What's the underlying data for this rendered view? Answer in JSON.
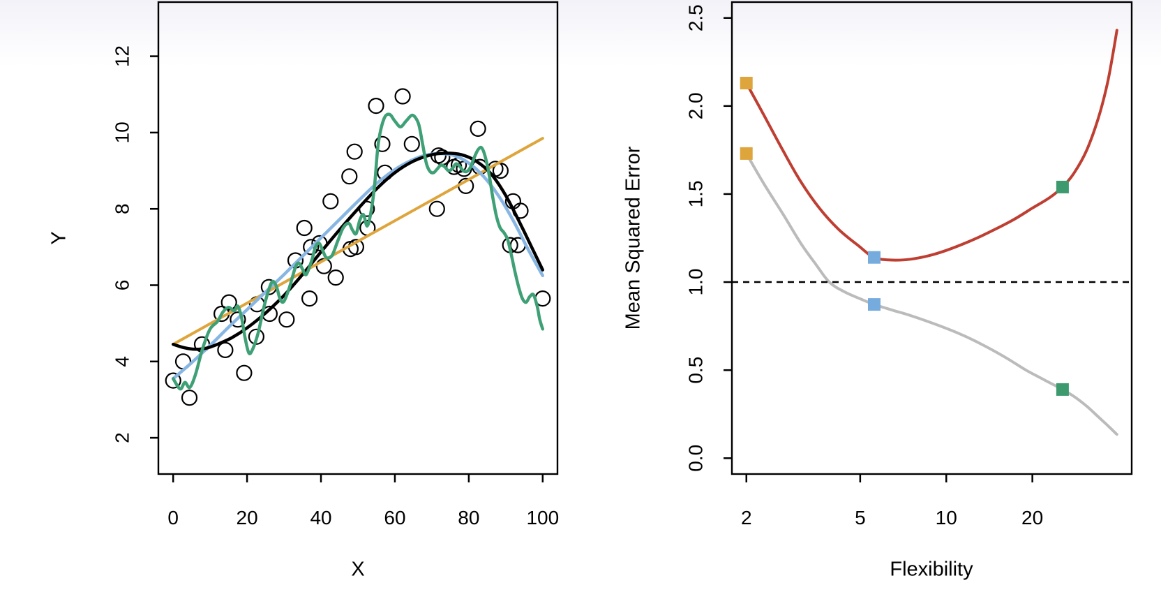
{
  "figure": {
    "background": "#ffffff",
    "top_gradient_color": "#f2f2f8",
    "axis_color": "#000000"
  },
  "chart_data": [
    {
      "id": "left-panel",
      "type": "scatter",
      "xlabel": "X",
      "ylabel": "Y",
      "x_ticks": [
        0,
        20,
        40,
        60,
        80,
        100
      ],
      "x_tick_labels": [
        "0",
        "20",
        "40",
        "60",
        "80",
        "100"
      ],
      "y_ticks": [
        2,
        4,
        6,
        8,
        10,
        12
      ],
      "y_tick_labels": [
        "2",
        "4",
        "6",
        "8",
        "10",
        "12"
      ],
      "xlim": [
        -4,
        104
      ],
      "ylim": [
        1.05,
        13.42
      ],
      "x_scale": "linear",
      "grid": false,
      "point_style": {
        "shape": "open-circle",
        "radius": 10.5,
        "stroke": "#000000",
        "stroke_width": 2.2
      },
      "points": [
        [
          0,
          3.5
        ],
        [
          2.7,
          4.0
        ],
        [
          4.4,
          3.05
        ],
        [
          7.8,
          4.45
        ],
        [
          13.1,
          5.25
        ],
        [
          14.1,
          4.3
        ],
        [
          15.1,
          5.55
        ],
        [
          17.5,
          5.1
        ],
        [
          19.2,
          3.7
        ],
        [
          22.5,
          4.65
        ],
        [
          22.7,
          5.5
        ],
        [
          25.9,
          5.95
        ],
        [
          26.1,
          5.25
        ],
        [
          30.7,
          5.1
        ],
        [
          33.1,
          6.65
        ],
        [
          35.5,
          7.5
        ],
        [
          36.9,
          5.65
        ],
        [
          37.3,
          7.0
        ],
        [
          39.6,
          7.1
        ],
        [
          40.8,
          6.5
        ],
        [
          42.6,
          8.2
        ],
        [
          44,
          6.2
        ],
        [
          47.7,
          8.85
        ],
        [
          48,
          6.95
        ],
        [
          49.1,
          9.5
        ],
        [
          49.5,
          7.0
        ],
        [
          52.4,
          8.0
        ],
        [
          52.6,
          7.5
        ],
        [
          54.9,
          10.7
        ],
        [
          56.6,
          9.7
        ],
        [
          57.3,
          8.95
        ],
        [
          62.1,
          10.95
        ],
        [
          64.6,
          9.7
        ],
        [
          71.4,
          8.0
        ],
        [
          71.8,
          9.4
        ],
        [
          72.8,
          9.35
        ],
        [
          76,
          9.1
        ],
        [
          77.3,
          9.15
        ],
        [
          78.7,
          9.05
        ],
        [
          79.2,
          8.6
        ],
        [
          82.5,
          10.1
        ],
        [
          83,
          9.1
        ],
        [
          87.2,
          9.05
        ],
        [
          88.6,
          9.0
        ],
        [
          91.2,
          7.05
        ],
        [
          92,
          8.2
        ],
        [
          93.3,
          7.05
        ],
        [
          94,
          7.95
        ],
        [
          100,
          5.65
        ]
      ],
      "series": [
        {
          "name": "linear-regression-fit",
          "color": "#DEA53C",
          "width": 4,
          "smooth": false,
          "points": [
            [
              0,
              4.45
            ],
            [
              100,
              9.85
            ]
          ]
        },
        {
          "name": "smoothing-spline-fit",
          "color": "#88B6E3",
          "width": 4.5,
          "smooth": true,
          "points": [
            [
              0,
              3.55
            ],
            [
              5,
              3.97
            ],
            [
              10,
              4.42
            ],
            [
              15,
              4.9
            ],
            [
              20,
              5.36
            ],
            [
              25,
              5.82
            ],
            [
              30,
              6.28
            ],
            [
              35,
              6.76
            ],
            [
              40,
              7.24
            ],
            [
              45,
              7.72
            ],
            [
              50,
              8.2
            ],
            [
              55,
              8.66
            ],
            [
              60,
              9.03
            ],
            [
              64,
              9.25
            ],
            [
              68,
              9.4
            ],
            [
              72,
              9.45
            ],
            [
              76,
              9.4
            ],
            [
              80,
              9.2
            ],
            [
              84,
              8.85
            ],
            [
              88,
              8.35
            ],
            [
              92,
              7.7
            ],
            [
              96,
              6.95
            ],
            [
              100,
              6.25
            ]
          ]
        },
        {
          "name": "true-function",
          "color": "#000000",
          "width": 4.5,
          "smooth": true,
          "points": [
            [
              0,
              4.45
            ],
            [
              3,
              4.36
            ],
            [
              6,
              4.32
            ],
            [
              9,
              4.35
            ],
            [
              12,
              4.45
            ],
            [
              16,
              4.63
            ],
            [
              20,
              4.88
            ],
            [
              25,
              5.27
            ],
            [
              30,
              5.73
            ],
            [
              35,
              6.28
            ],
            [
              40,
              6.87
            ],
            [
              45,
              7.45
            ],
            [
              50,
              8.0
            ],
            [
              55,
              8.52
            ],
            [
              60,
              8.95
            ],
            [
              65,
              9.25
            ],
            [
              70,
              9.42
            ],
            [
              74,
              9.46
            ],
            [
              78,
              9.42
            ],
            [
              82,
              9.25
            ],
            [
              86,
              8.92
            ],
            [
              90,
              8.35
            ],
            [
              94,
              7.6
            ],
            [
              97,
              7.0
            ],
            [
              100,
              6.4
            ]
          ]
        },
        {
          "name": "rough-spline-fit",
          "color": "#3FA076",
          "width": 4.5,
          "smooth": true,
          "points": [
            [
              0,
              3.55
            ],
            [
              1.9,
              3.28
            ],
            [
              3.2,
              3.45
            ],
            [
              4.5,
              3.32
            ],
            [
              6,
              3.65
            ],
            [
              8,
              4.35
            ],
            [
              10,
              4.85
            ],
            [
              12,
              5.05
            ],
            [
              13.5,
              5.3
            ],
            [
              15,
              5.42
            ],
            [
              16.5,
              5.33
            ],
            [
              17.5,
              5.45
            ],
            [
              18.5,
              5.15
            ],
            [
              19.5,
              4.6
            ],
            [
              20.5,
              4.22
            ],
            [
              21.5,
              4.32
            ],
            [
              23,
              4.75
            ],
            [
              24.5,
              5.4
            ],
            [
              26,
              5.92
            ],
            [
              27,
              6.1
            ],
            [
              28,
              5.95
            ],
            [
              29,
              5.62
            ],
            [
              30,
              5.58
            ],
            [
              31.5,
              5.95
            ],
            [
              33,
              6.45
            ],
            [
              34,
              6.58
            ],
            [
              35,
              6.42
            ],
            [
              36,
              6.28
            ],
            [
              37.5,
              6.65
            ],
            [
              38.5,
              7.0
            ],
            [
              39.5,
              7.1
            ],
            [
              40.5,
              6.9
            ],
            [
              41.5,
              6.72
            ],
            [
              43,
              6.78
            ],
            [
              44.5,
              7.15
            ],
            [
              46,
              7.5
            ],
            [
              47.5,
              7.62
            ],
            [
              48.5,
              7.45
            ],
            [
              49.5,
              7.35
            ],
            [
              50.5,
              7.7
            ],
            [
              51.5,
              7.85
            ],
            [
              52.5,
              7.55
            ],
            [
              53.5,
              7.9
            ],
            [
              54.5,
              8.6
            ],
            [
              55.5,
              9.7
            ],
            [
              57,
              10.35
            ],
            [
              58.5,
              10.48
            ],
            [
              60,
              10.3
            ],
            [
              61.5,
              10.15
            ],
            [
              63,
              10.3
            ],
            [
              64.5,
              10.45
            ],
            [
              65.5,
              10.4
            ],
            [
              66.5,
              10.2
            ],
            [
              67.5,
              9.7
            ],
            [
              68.5,
              9.2
            ],
            [
              69.5,
              8.98
            ],
            [
              70.5,
              8.95
            ],
            [
              71.5,
              9.05
            ],
            [
              72.5,
              9.15
            ],
            [
              73.5,
              9.1
            ],
            [
              74.5,
              9.0
            ],
            [
              75.5,
              9.05
            ],
            [
              76.5,
              9.18
            ],
            [
              77.5,
              9.12
            ],
            [
              78.5,
              9.0
            ],
            [
              79.5,
              8.98
            ],
            [
              80.5,
              9.1
            ],
            [
              81.5,
              9.35
            ],
            [
              82.5,
              9.55
            ],
            [
              83.5,
              9.6
            ],
            [
              84.5,
              9.35
            ],
            [
              85.5,
              8.9
            ],
            [
              86.5,
              8.3
            ],
            [
              87.5,
              7.8
            ],
            [
              88.5,
              7.5
            ],
            [
              89.5,
              7.38
            ],
            [
              90.5,
              7.2
            ],
            [
              91.5,
              6.8
            ],
            [
              92.5,
              6.35
            ],
            [
              93.5,
              5.95
            ],
            [
              94.5,
              5.65
            ],
            [
              95.5,
              5.55
            ],
            [
              96.5,
              5.7
            ],
            [
              97.5,
              5.75
            ],
            [
              98.5,
              5.45
            ],
            [
              99.2,
              5.1
            ],
            [
              100,
              4.85
            ]
          ]
        }
      ]
    },
    {
      "id": "right-panel",
      "type": "line",
      "xlabel": "Flexibility",
      "ylabel": "Mean Squared Error",
      "x_ticks": [
        2,
        5,
        10,
        20
      ],
      "x_tick_labels": [
        "2",
        "5",
        "10",
        "20"
      ],
      "y_ticks": [
        0,
        0.5,
        1,
        1.5,
        2,
        2.5
      ],
      "y_tick_labels": [
        "0.0",
        "0.5",
        "1.0",
        "1.5",
        "2.0",
        "2.5"
      ],
      "xlim": [
        1.78,
        44.5
      ],
      "ylim": [
        -0.09,
        2.59
      ],
      "x_scale": "log",
      "grid": false,
      "hline": {
        "name": "irreducible-error-line",
        "y": 1.0,
        "style": "dashed",
        "color": "#000000",
        "width": 2.5
      },
      "series": [
        {
          "name": "test-mse-curve",
          "color": "#BE3E32",
          "width": 4,
          "smooth": true,
          "points": [
            [
              2,
              2.13
            ],
            [
              2.3,
              1.95
            ],
            [
              2.7,
              1.74
            ],
            [
              3.1,
              1.57
            ],
            [
              3.6,
              1.42
            ],
            [
              4.2,
              1.3
            ],
            [
              4.9,
              1.21
            ],
            [
              5.6,
              1.14
            ],
            [
              6.5,
              1.125
            ],
            [
              7.5,
              1.13
            ],
            [
              8.7,
              1.15
            ],
            [
              10,
              1.18
            ],
            [
              12,
              1.23
            ],
            [
              14,
              1.28
            ],
            [
              17,
              1.35
            ],
            [
              20,
              1.42
            ],
            [
              23,
              1.48
            ],
            [
              25.5,
              1.54
            ],
            [
              28,
              1.62
            ],
            [
              31,
              1.75
            ],
            [
              34,
              1.93
            ],
            [
              36.5,
              2.12
            ],
            [
              38.3,
              2.3
            ],
            [
              39.5,
              2.43
            ]
          ]
        },
        {
          "name": "training-mse-curve",
          "color": "#BBBBBB",
          "width": 4,
          "smooth": true,
          "points": [
            [
              2,
              1.73
            ],
            [
              2.3,
              1.56
            ],
            [
              2.7,
              1.38
            ],
            [
              3.1,
              1.22
            ],
            [
              3.5,
              1.1
            ],
            [
              3.9,
              1.0
            ],
            [
              4.4,
              0.945
            ],
            [
              5,
              0.905
            ],
            [
              5.6,
              0.873
            ],
            [
              6.5,
              0.84
            ],
            [
              7.5,
              0.81
            ],
            [
              9,
              0.765
            ],
            [
              11,
              0.71
            ],
            [
              13,
              0.655
            ],
            [
              16,
              0.575
            ],
            [
              19,
              0.5
            ],
            [
              22,
              0.445
            ],
            [
              25.5,
              0.39
            ],
            [
              28,
              0.35
            ],
            [
              31,
              0.295
            ],
            [
              34,
              0.235
            ],
            [
              37,
              0.18
            ],
            [
              39.5,
              0.135
            ]
          ]
        }
      ],
      "markers": [
        {
          "name": "linear-model-test-mse-marker",
          "x": 2,
          "y": 2.13,
          "color": "#DEA53C",
          "size": 18
        },
        {
          "name": "linear-model-train-mse-marker",
          "x": 2,
          "y": 1.73,
          "color": "#DEA53C",
          "size": 18
        },
        {
          "name": "smoothing-spline-test-mse-marker",
          "x": 5.6,
          "y": 1.14,
          "color": "#76ABDD",
          "size": 18
        },
        {
          "name": "smoothing-spline-train-mse-marker",
          "x": 5.6,
          "y": 0.873,
          "color": "#76ABDD",
          "size": 18
        },
        {
          "name": "rough-spline-test-mse-marker",
          "x": 25.5,
          "y": 1.54,
          "color": "#3C9A6E",
          "size": 18
        },
        {
          "name": "rough-spline-train-mse-marker",
          "x": 25.5,
          "y": 0.39,
          "color": "#3C9A6E",
          "size": 18
        }
      ]
    }
  ]
}
